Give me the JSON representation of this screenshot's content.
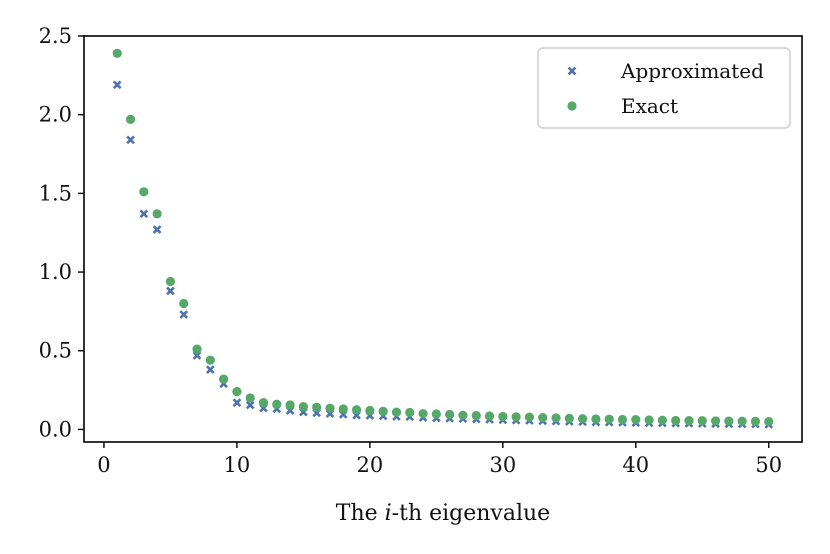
{
  "chart_data": {
    "type": "scatter",
    "xlabel": {
      "prefix": "The ",
      "italic": "i",
      "suffix": "-th eigenvalue"
    },
    "ylabel": "",
    "title": "",
    "xlim": [
      -1.5,
      52.5
    ],
    "ylim": [
      -0.08,
      2.5
    ],
    "xticks": [
      0,
      10,
      20,
      30,
      40,
      50
    ],
    "yticks": [
      0.0,
      0.5,
      1.0,
      1.5,
      2.0,
      2.5
    ],
    "ytick_labels": [
      "0.0",
      "0.5",
      "1.0",
      "1.5",
      "2.0",
      "2.5"
    ],
    "grid": false,
    "legend_position": "top-right",
    "x": [
      1,
      2,
      3,
      4,
      5,
      6,
      7,
      8,
      9,
      10,
      11,
      12,
      13,
      14,
      15,
      16,
      17,
      18,
      19,
      20,
      21,
      22,
      23,
      24,
      25,
      26,
      27,
      28,
      29,
      30,
      31,
      32,
      33,
      34,
      35,
      36,
      37,
      38,
      39,
      40,
      41,
      42,
      43,
      44,
      45,
      46,
      47,
      48,
      49,
      50
    ],
    "series": [
      {
        "name": "Approximated",
        "marker": "x",
        "color": "#4c72b0",
        "values": [
          2.19,
          1.84,
          1.37,
          1.27,
          0.88,
          0.73,
          0.47,
          0.38,
          0.29,
          0.17,
          0.155,
          0.135,
          0.13,
          0.12,
          0.11,
          0.105,
          0.1,
          0.095,
          0.09,
          0.088,
          0.085,
          0.082,
          0.08,
          0.075,
          0.072,
          0.07,
          0.068,
          0.065,
          0.063,
          0.06,
          0.058,
          0.056,
          0.054,
          0.052,
          0.05,
          0.048,
          0.046,
          0.045,
          0.044,
          0.042,
          0.041,
          0.04,
          0.039,
          0.038,
          0.037,
          0.036,
          0.035,
          0.034,
          0.033,
          0.032
        ]
      },
      {
        "name": "Exact",
        "marker": "circle",
        "color": "#55a868",
        "values": [
          2.39,
          1.97,
          1.51,
          1.37,
          0.94,
          0.8,
          0.51,
          0.44,
          0.32,
          0.24,
          0.2,
          0.17,
          0.16,
          0.155,
          0.145,
          0.14,
          0.135,
          0.13,
          0.125,
          0.12,
          0.115,
          0.11,
          0.108,
          0.1,
          0.098,
          0.095,
          0.09,
          0.088,
          0.085,
          0.082,
          0.08,
          0.078,
          0.075,
          0.073,
          0.07,
          0.068,
          0.066,
          0.065,
          0.063,
          0.062,
          0.06,
          0.058,
          0.057,
          0.056,
          0.055,
          0.054,
          0.053,
          0.052,
          0.051,
          0.05
        ]
      }
    ]
  }
}
